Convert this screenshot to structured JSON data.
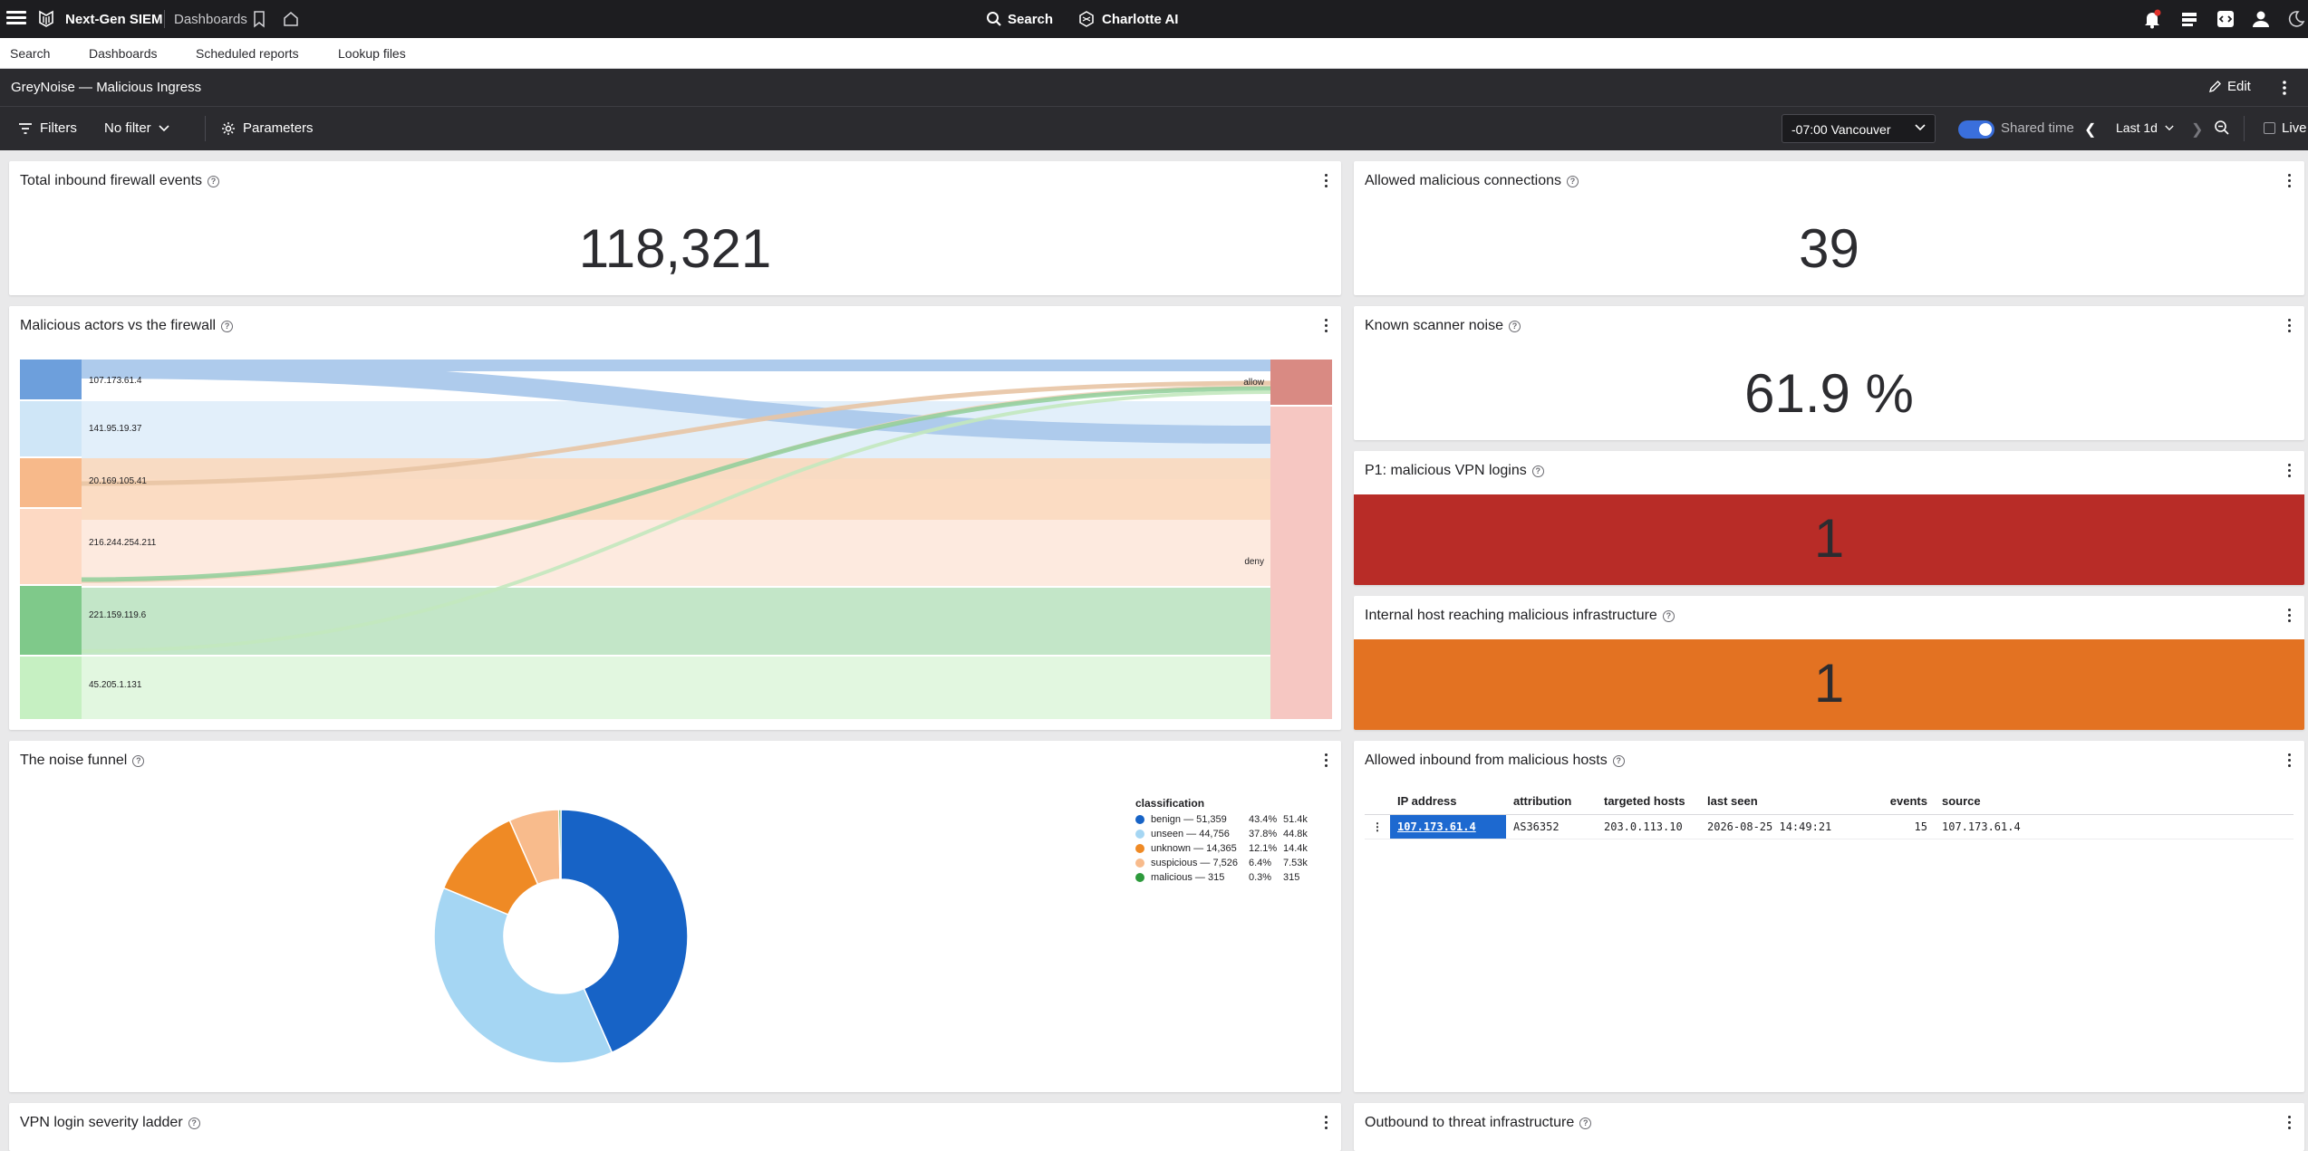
{
  "app": {
    "name": "Next-Gen SIEM",
    "breadcrumb": "Dashboards"
  },
  "topnav": {
    "search_label": "Search",
    "ai_label": "Charlotte AI"
  },
  "subnav": [
    "Search",
    "Dashboards",
    "Scheduled reports",
    "Lookup files"
  ],
  "dashboard": {
    "title": "GreyNoise — Malicious Ingress",
    "edit_label": "Edit"
  },
  "toolbar": {
    "filters_label": "Filters",
    "filter_value": "No filter",
    "parameters_label": "Parameters",
    "timezone": "-07:00 Vancouver",
    "shared_time_label": "Shared time",
    "shared_time_on": true,
    "time_range": "Last 1d",
    "live_label": "Live"
  },
  "widgets": {
    "total_inbound": {
      "title": "Total inbound firewall events",
      "value": "118,321"
    },
    "allowed_malicious": {
      "title": "Allowed malicious connections",
      "value": "39"
    },
    "sankey": {
      "title": "Malicious actors vs the firewall",
      "sources": [
        {
          "label": "107.173.61.4",
          "color": "#6d9fdc",
          "band": "#aecbec"
        },
        {
          "label": "141.95.19.37",
          "color": "#cfe6f7",
          "band": "#e2effa"
        },
        {
          "label": "20.169.105.41",
          "color": "#f7b98a",
          "band": "#fbd8bd"
        },
        {
          "label": "216.244.254.211",
          "color": "#fdd9c3",
          "band": "#fdeadf"
        },
        {
          "label": "221.159.119.6",
          "color": "#7fc98a",
          "band": "#c3e6c8"
        },
        {
          "label": "45.205.1.131",
          "color": "#c6f0c2",
          "band": "#e2f7e0"
        }
      ],
      "targets": [
        {
          "label": "allow",
          "color": "#d98a83"
        },
        {
          "label": "deny",
          "color": "#f6c7c2"
        }
      ]
    },
    "scanner_noise": {
      "title": "Known scanner noise",
      "value": "61.9 %"
    },
    "vpn_logins": {
      "title": "P1: malicious VPN logins",
      "value": "1",
      "color": "#b82c27"
    },
    "internal_host": {
      "title": "Internal host reaching malicious infrastructure",
      "value": "1",
      "color": "#e37222"
    },
    "noise_funnel": {
      "title": "The noise funnel"
    },
    "allowed_inbound": {
      "title": "Allowed inbound from malicious hosts",
      "columns": [
        "IP address",
        "attribution",
        "targeted hosts",
        "last seen",
        "events",
        "source"
      ],
      "rows": [
        {
          "ip": "107.173.61.4",
          "attribution": "AS36352",
          "targeted": "203.0.113.10",
          "last_seen": "2026-08-25 14:49:21",
          "events": "15",
          "source": "107.173.61.4"
        }
      ]
    },
    "vpn_ladder": {
      "title": "VPN login severity ladder"
    },
    "outbound": {
      "title": "Outbound to threat infrastructure"
    }
  },
  "chart_data": {
    "type": "pie",
    "title": "",
    "legend_title": "classification",
    "legend_position": "right",
    "series": [
      {
        "name": "benign",
        "value": 51359,
        "label": "benign — 51,359",
        "percent": "43.4%",
        "short": "51.4k",
        "color": "#1763c6"
      },
      {
        "name": "unseen",
        "value": 44756,
        "label": "unseen — 44,756",
        "percent": "37.8%",
        "short": "44.8k",
        "color": "#a5d6f3"
      },
      {
        "name": "unknown",
        "value": 14365,
        "label": "unknown — 14,365",
        "percent": "12.1%",
        "short": "14.4k",
        "color": "#ef8a25"
      },
      {
        "name": "suspicious",
        "value": 7526,
        "label": "suspicious — 7,526",
        "percent": "6.4%",
        "short": "7.53k",
        "color": "#f8bb8c"
      },
      {
        "name": "malicious",
        "value": 315,
        "label": "malicious — 315",
        "percent": "0.3%",
        "short": "315",
        "color": "#2d9a3c"
      }
    ]
  }
}
